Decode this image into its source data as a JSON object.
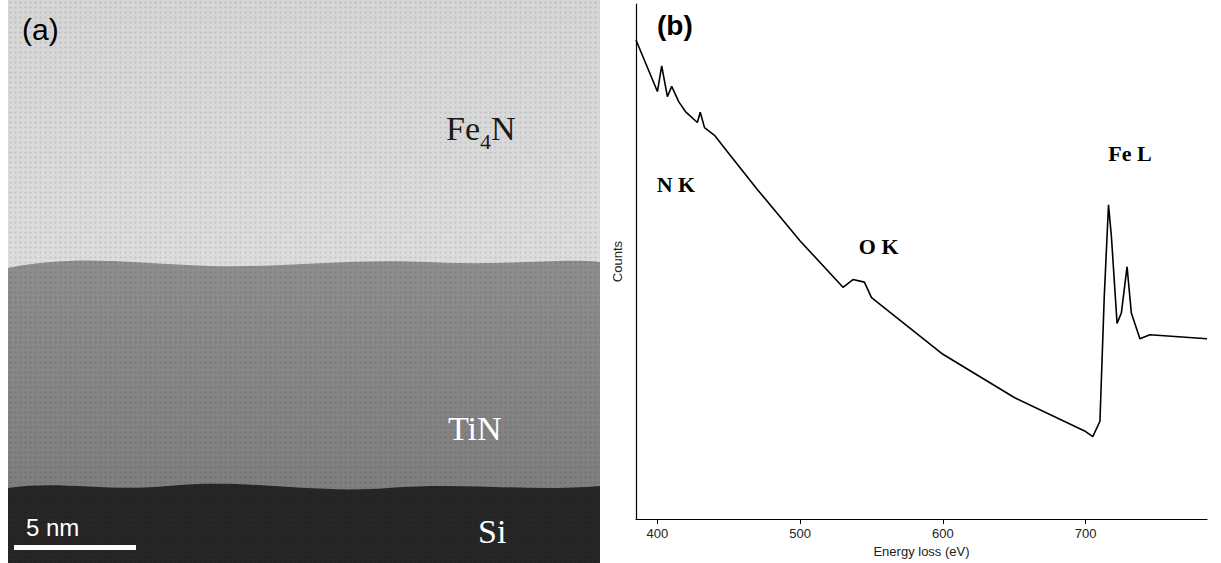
{
  "panel_a": {
    "label": "(a)",
    "layers": [
      "Fe4N",
      "TiN",
      "Si"
    ],
    "scale_bar": "5 nm"
  },
  "chart_data": {
    "type": "line",
    "title": "(b)",
    "x_label": "Energy loss (eV)",
    "y_label": "Counts",
    "x": [
      385,
      400,
      403,
      407,
      410,
      415,
      420,
      428,
      430,
      433,
      440,
      450,
      470,
      500,
      530,
      537,
      545,
      550,
      600,
      650,
      700,
      705,
      710,
      713,
      716,
      718,
      722,
      725,
      729,
      732,
      738,
      745,
      760,
      785
    ],
    "values": [
      93,
      83,
      88,
      82,
      84,
      81,
      79,
      77,
      79,
      76,
      74.5,
      71,
      64,
      54,
      45,
      46.5,
      46,
      43,
      32,
      23.6,
      17,
      16,
      19,
      43,
      61,
      55,
      38,
      40,
      49,
      40,
      35,
      35.8,
      35.5,
      35
    ],
    "color": "#000000",
    "xlim": [
      385,
      785
    ],
    "xticks": [
      400,
      500,
      600,
      700
    ],
    "ylim": [
      0,
      100
    ],
    "tick_labels": "x",
    "grid": false,
    "annotations": [
      {
        "text": "N K",
        "x": 413,
        "y": 65
      },
      {
        "text": "O K",
        "x": 555,
        "y": 53
      },
      {
        "text": "Fe L",
        "x": 731,
        "y": 71
      }
    ]
  }
}
